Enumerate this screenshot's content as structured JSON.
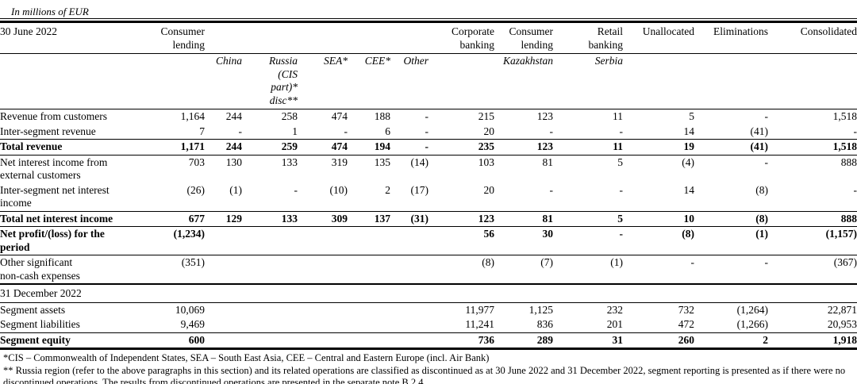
{
  "units_note": "In millions of EUR",
  "table": {
    "period_label": "30 June 2022",
    "groups": [
      {
        "label": "Consumer\nlending",
        "bold": false
      },
      {
        "label": "",
        "bold": false
      },
      {
        "label": "",
        "bold": false
      },
      {
        "label": "",
        "bold": false
      },
      {
        "label": "",
        "bold": false
      },
      {
        "label": "",
        "bold": false
      },
      {
        "label": "Corporate\nbanking",
        "bold": false
      },
      {
        "label": "Consumer\nlending",
        "bold": false
      },
      {
        "label": "Retail\nbanking",
        "bold": false
      },
      {
        "label": "Unallocated",
        "bold": false
      },
      {
        "label": "Eliminations",
        "bold": false
      },
      {
        "label": "Consolidated",
        "bold": true
      }
    ],
    "sub_headers": [
      "",
      "China",
      "Russia\n(CIS\npart)*\ndisc**",
      "SEA*",
      "CEE*",
      "Other",
      "",
      "Kazakhstan",
      "Serbia",
      "",
      "",
      ""
    ],
    "rows": [
      {
        "label": "Revenue from customers",
        "bold": false,
        "section": false,
        "sep": "",
        "values": [
          "1,164",
          "244",
          "258",
          "474",
          "188",
          "-",
          "215",
          "123",
          "11",
          "5",
          "-",
          "1,518"
        ]
      },
      {
        "label": "Inter-segment revenue",
        "bold": false,
        "section": false,
        "sep": "thin",
        "values": [
          "7",
          "-",
          "1",
          "-",
          "6",
          "-",
          "20",
          "-",
          "-",
          "14",
          "(41)",
          "-"
        ]
      },
      {
        "label": "Total revenue",
        "bold": true,
        "section": false,
        "sep": "thin",
        "values": [
          "1,171",
          "244",
          "259",
          "474",
          "194",
          "-",
          "235",
          "123",
          "11",
          "19",
          "(41)",
          "1,518"
        ]
      },
      {
        "label": "Net interest income from\nexternal customers",
        "bold": false,
        "section": false,
        "sep": "",
        "values": [
          "703",
          "130",
          "133",
          "319",
          "135",
          "(14)",
          "103",
          "81",
          "5",
          "(4)",
          "-",
          "888"
        ]
      },
      {
        "label": "Inter-segment net interest\nincome",
        "bold": false,
        "section": false,
        "sep": "thin",
        "values": [
          "(26)",
          "(1)",
          "-",
          "(10)",
          "2",
          "(17)",
          "20",
          "-",
          "-",
          "14",
          "(8)",
          "-"
        ]
      },
      {
        "label": "Total net interest income",
        "bold": true,
        "section": false,
        "sep": "thin",
        "values": [
          "677",
          "129",
          "133",
          "309",
          "137",
          "(31)",
          "123",
          "81",
          "5",
          "10",
          "(8)",
          "888"
        ]
      },
      {
        "label": "Net profit/(loss) for the\nperiod",
        "bold": true,
        "section": false,
        "sep": "thin",
        "values": [
          "(1,234)",
          "",
          "",
          "",
          "",
          "",
          "56",
          "30",
          "-",
          "(8)",
          "(1)",
          "(1,157)"
        ]
      },
      {
        "label": "Other significant\nnon-cash expenses",
        "bold": false,
        "section": false,
        "sep": "thick",
        "values": [
          "(351)",
          "",
          "",
          "",
          "",
          "",
          "(8)",
          "(7)",
          "(1)",
          "-",
          "-",
          "(367)"
        ]
      },
      {
        "label": "31 December 2022",
        "bold": false,
        "section": true,
        "sep": "thin",
        "values": [
          "",
          "",
          "",
          "",
          "",
          "",
          "",
          "",
          "",
          "",
          "",
          ""
        ]
      },
      {
        "label": "Segment assets",
        "bold": false,
        "section": false,
        "sep": "",
        "values": [
          "10,069",
          "",
          "",
          "",
          "",
          "",
          "11,977",
          "1,125",
          "232",
          "732",
          "(1,264)",
          "22,871"
        ]
      },
      {
        "label": "Segment liabilities",
        "bold": false,
        "section": false,
        "sep": "thin",
        "values": [
          "9,469",
          "",
          "",
          "",
          "",
          "",
          "11,241",
          "836",
          "201",
          "472",
          "(1,266)",
          "20,953"
        ]
      },
      {
        "label": "Segment equity",
        "bold": true,
        "section": false,
        "sep": "",
        "values": [
          "600",
          "",
          "",
          "",
          "",
          "",
          "736",
          "289",
          "31",
          "260",
          "2",
          "1,918"
        ]
      }
    ]
  },
  "footnotes": [
    "*CIS – Commonwealth of Independent States, SEA – South East Asia, CEE – Central and Eastern Europe (incl. Air Bank)",
    "** Russia region (refer to the above paragraphs in this section) and its related operations are classified as discontinued as at 30 June 2022 and 31 December 2022, segment reporting is presented as if there were no discontinued operations. The results from discontinued operations are presented in the separate note B.2.4."
  ]
}
